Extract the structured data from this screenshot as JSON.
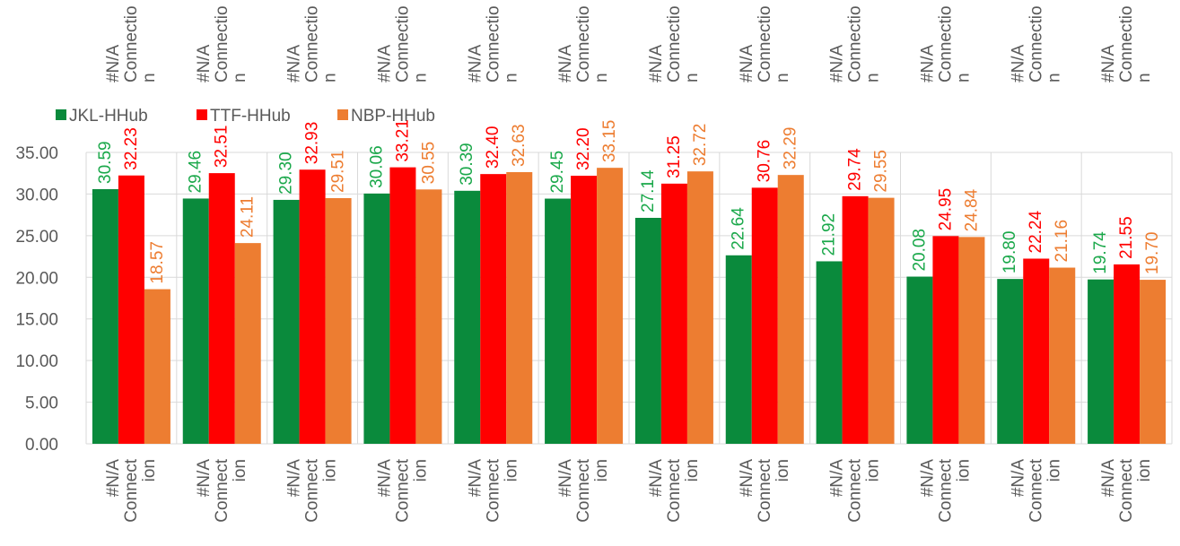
{
  "chart_data": {
    "type": "bar",
    "title": "",
    "xlabel": "",
    "ylabel": "",
    "ylim": [
      0,
      35
    ],
    "y_ticks": [
      "0.00",
      "5.00",
      "10.00",
      "15.00",
      "20.00",
      "25.00",
      "30.00",
      "35.00"
    ],
    "grid": true,
    "legend_position": "top-left",
    "category_label_lines": [
      "#N/A",
      "Connect",
      "ion"
    ],
    "top_label_lines": [
      "#N/A",
      "Connectio",
      "n"
    ],
    "categories": [
      "#N/A Connection",
      "#N/A Connection",
      "#N/A Connection",
      "#N/A Connection",
      "#N/A Connection",
      "#N/A Connection",
      "#N/A Connection",
      "#N/A Connection",
      "#N/A Connection",
      "#N/A Connection",
      "#N/A Connection",
      "#N/A Connection"
    ],
    "series": [
      {
        "name": "JKL-HHub",
        "color": "#0a8a3c",
        "label_color": "#1aa84a",
        "values": [
          30.59,
          29.46,
          29.3,
          30.06,
          30.39,
          29.45,
          27.14,
          22.64,
          21.92,
          20.08,
          19.8,
          19.74
        ],
        "labels": [
          "30.59",
          "29.46",
          "29.30",
          "30.06",
          "30.39",
          "29.45",
          "27.14",
          "22.64",
          "21.92",
          "20.08",
          "19.80",
          "19.74"
        ]
      },
      {
        "name": "TTF-HHub",
        "color": "#ff0000",
        "label_color": "#ff0000",
        "values": [
          32.23,
          32.51,
          32.93,
          33.21,
          32.4,
          32.2,
          31.25,
          30.76,
          29.74,
          24.95,
          22.24,
          21.55
        ],
        "labels": [
          "32.23",
          "32.51",
          "32.93",
          "33.21",
          "32.40",
          "32.20",
          "31.25",
          "30.76",
          "29.74",
          "24.95",
          "22.24",
          "21.55"
        ]
      },
      {
        "name": "NBP-HHub",
        "color": "#ed7d31",
        "label_color": "#ed7d31",
        "values": [
          18.57,
          24.11,
          29.51,
          30.55,
          32.63,
          33.15,
          32.72,
          32.29,
          29.55,
          24.84,
          21.16,
          19.7
        ],
        "labels": [
          "18.57",
          "24.11",
          "29.51",
          "30.55",
          "32.63",
          "33.15",
          "32.72",
          "32.29",
          "29.55",
          "24.84",
          "21.16",
          "19.70"
        ]
      }
    ]
  }
}
